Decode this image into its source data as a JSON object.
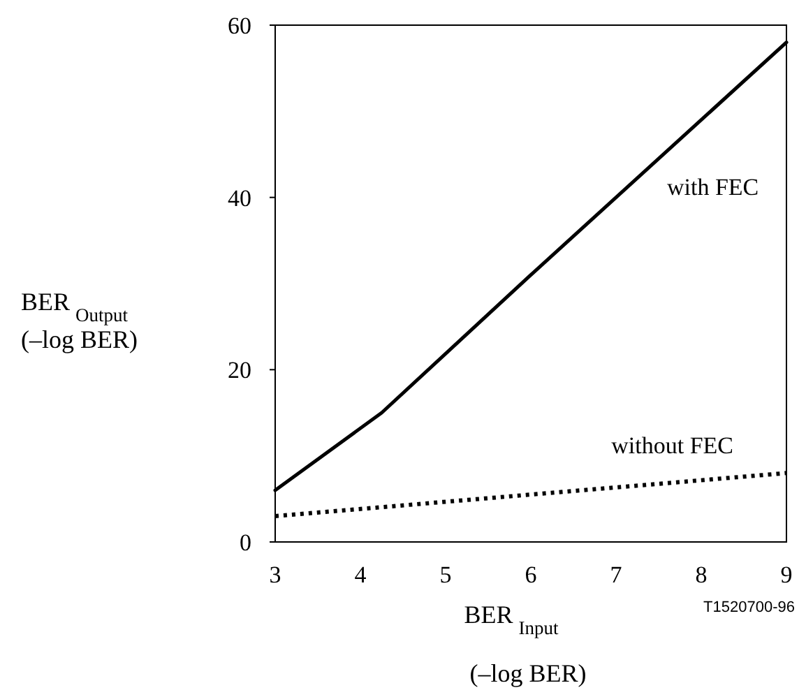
{
  "chart_data": {
    "type": "line",
    "xlabel": "BER$_{Input}$\n(–log BER)",
    "ylabel": "BER$_{Output}$\n(–log BER)",
    "xlim": [
      3,
      9
    ],
    "xticks": [
      3,
      4,
      5,
      6,
      7,
      8,
      9
    ],
    "ylim": [
      0,
      60
    ],
    "yticks": [
      0,
      20,
      40,
      60
    ],
    "grid": false,
    "legend": false,
    "marker": "none",
    "annotations": [
      "T1520700-96"
    ],
    "series": [
      {
        "name": "with FEC",
        "color": "#000000",
        "line_style": "solid",
        "x": [
          3,
          4.25,
          6,
          9
        ],
        "values": [
          6,
          15,
          31,
          58
        ]
      },
      {
        "name": "without FEC",
        "color": "#000000",
        "line_style": "dotted",
        "x": [
          3,
          9
        ],
        "values": [
          3,
          8
        ]
      }
    ]
  }
}
